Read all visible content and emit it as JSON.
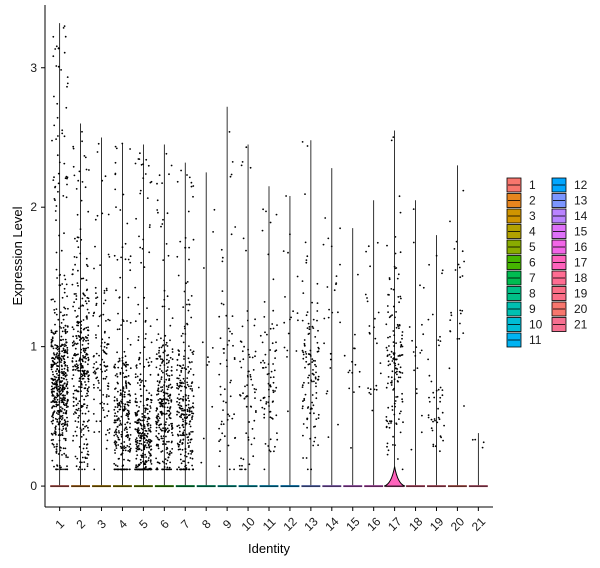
{
  "chart_data": {
    "type": "violin",
    "xlabel": "Identity",
    "ylabel": "Expression Level",
    "categories": [
      "1",
      "2",
      "3",
      "4",
      "5",
      "6",
      "7",
      "8",
      "9",
      "10",
      "11",
      "12",
      "13",
      "14",
      "15",
      "16",
      "17",
      "18",
      "19",
      "20",
      "21"
    ],
    "yticks": [
      0,
      1,
      2,
      3
    ],
    "ylim": [
      -0.15,
      3.45
    ],
    "grid": false,
    "legend_position": "right",
    "legend_columns": [
      [
        "1",
        "2",
        "3",
        "4",
        "5",
        "6",
        "7",
        "8",
        "9",
        "10",
        "11"
      ],
      [
        "12",
        "13",
        "14",
        "15",
        "16",
        "17",
        "18",
        "19",
        "20",
        "21"
      ]
    ],
    "colors": [
      "#F8766D",
      "#E7851E",
      "#D09400",
      "#B2A100",
      "#89AC00",
      "#45B500",
      "#00BC51",
      "#00C087",
      "#00C0B2",
      "#00BCD6",
      "#00B3F2",
      "#00A6FF",
      "#7C96FF",
      "#B983FF",
      "#DE71F9",
      "#F265E7",
      "#FF62BC",
      "#FF6C92",
      "#FB6E87",
      "#F8766D",
      "#F66F90"
    ],
    "series_max": [
      3.32,
      2.6,
      2.5,
      2.46,
      2.45,
      2.45,
      2.32,
      2.25,
      2.72,
      2.45,
      2.15,
      2.08,
      2.48,
      2.28,
      1.85,
      2.05,
      2.55,
      2.05,
      1.8,
      2.3,
      0.38
    ],
    "series_points": [
      {
        "name": "1",
        "count": 520,
        "center": 0.7,
        "spread": 0.45
      },
      {
        "name": "2",
        "count": 330,
        "center": 0.8,
        "spread": 0.55
      },
      {
        "name": "3",
        "count": 120,
        "center": 0.9,
        "spread": 0.5
      },
      {
        "name": "4",
        "count": 280,
        "center": 0.45,
        "spread": 0.45
      },
      {
        "name": "5",
        "count": 330,
        "center": 0.35,
        "spread": 0.45
      },
      {
        "name": "6",
        "count": 300,
        "center": 0.55,
        "spread": 0.45
      },
      {
        "name": "7",
        "count": 280,
        "center": 0.5,
        "spread": 0.45
      },
      {
        "name": "8",
        "count": 12,
        "center": 1.0,
        "spread": 0.6
      },
      {
        "name": "9",
        "count": 60,
        "center": 0.7,
        "spread": 0.55
      },
      {
        "name": "10",
        "count": 70,
        "center": 0.6,
        "spread": 0.5
      },
      {
        "name": "11",
        "count": 80,
        "center": 0.7,
        "spread": 0.5
      },
      {
        "name": "12",
        "count": 18,
        "center": 1.2,
        "spread": 0.6
      },
      {
        "name": "13",
        "count": 120,
        "center": 0.75,
        "spread": 0.5
      },
      {
        "name": "14",
        "count": 25,
        "center": 1.3,
        "spread": 0.7
      },
      {
        "name": "15",
        "count": 15,
        "center": 0.8,
        "spread": 0.5
      },
      {
        "name": "16",
        "count": 25,
        "center": 1.0,
        "spread": 0.6
      },
      {
        "name": "17",
        "count": 150,
        "center": 0.8,
        "spread": 0.55
      },
      {
        "name": "18",
        "count": 20,
        "center": 0.9,
        "spread": 0.5
      },
      {
        "name": "19",
        "count": 45,
        "center": 0.5,
        "spread": 0.35
      },
      {
        "name": "20",
        "count": 25,
        "center": 1.3,
        "spread": 0.6
      },
      {
        "name": "21",
        "count": 4,
        "center": 0.3,
        "spread": 0.05
      }
    ]
  }
}
